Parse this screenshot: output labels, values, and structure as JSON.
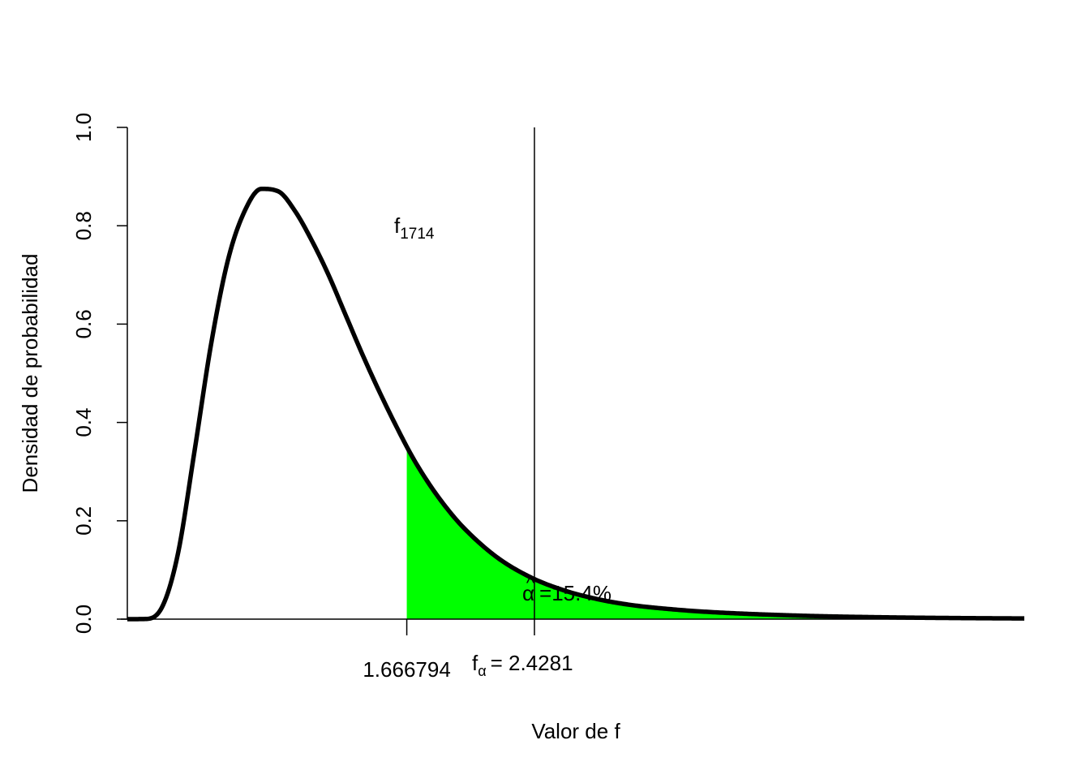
{
  "chart_data": {
    "type": "area",
    "title": "",
    "xlabel": "Valor de f",
    "ylabel": "Densidad de probabilidad",
    "ylim": [
      0,
      1
    ],
    "yticks": [
      "0.0",
      "0.2",
      "0.4",
      "0.6",
      "0.8",
      "1.0"
    ],
    "xlim": [
      0,
      5.35
    ],
    "grid": false,
    "distribution": {
      "name": "F",
      "df1": 17,
      "df2": 14,
      "label_main": "f",
      "label_sub": "1714"
    },
    "curve": {
      "x": [
        0,
        0.1,
        0.2,
        0.3,
        0.4,
        0.5,
        0.6,
        0.7,
        0.8,
        0.9,
        1.0,
        1.1,
        1.2,
        1.3,
        1.4,
        1.5,
        1.6,
        1.7,
        1.8,
        1.9,
        2.0,
        2.2,
        2.4,
        2.6,
        2.8,
        3.0,
        3.25,
        3.5,
        4.0,
        4.5,
        5.0,
        5.35
      ],
      "y": [
        0,
        0.0003,
        0.02,
        0.13,
        0.34,
        0.56,
        0.73,
        0.83,
        0.875,
        0.87,
        0.83,
        0.77,
        0.7,
        0.62,
        0.54,
        0.465,
        0.395,
        0.33,
        0.275,
        0.228,
        0.188,
        0.127,
        0.086,
        0.059,
        0.041,
        0.029,
        0.02,
        0.014,
        0.0072,
        0.0038,
        0.0021,
        0.0014
      ]
    },
    "shaded_from": 1.666794,
    "shaded_color": "#00ff00",
    "shaded_label": "=15.4%",
    "shaded_label_symbol": "α",
    "shaded_label_hat": "^",
    "observed_value_label": "1.666794",
    "critical_value": 2.4281,
    "critical_label_main": "f",
    "critical_label_sub": "α",
    "critical_label_value": "= 2.4281"
  }
}
